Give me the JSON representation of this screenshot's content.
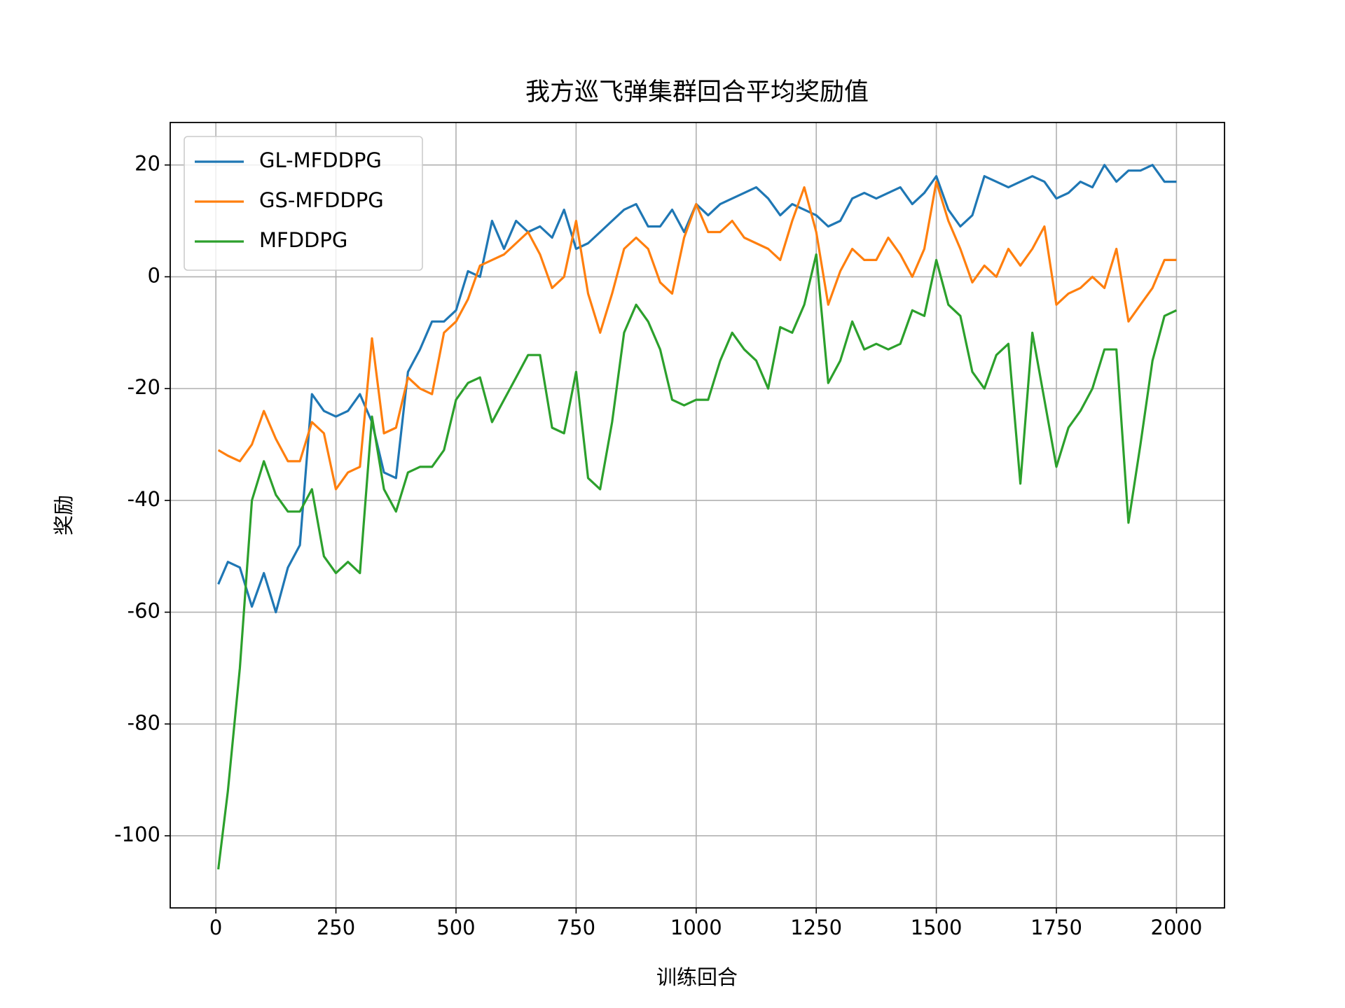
{
  "chart_data": {
    "type": "line",
    "title": "我方巡飞弹集群回合平均奖励值",
    "x_label": "训练回合",
    "y_label": "奖励",
    "x": [
      5,
      25,
      50,
      75,
      100,
      125,
      150,
      175,
      200,
      225,
      250,
      275,
      300,
      325,
      350,
      375,
      400,
      425,
      450,
      475,
      500,
      525,
      550,
      575,
      600,
      625,
      650,
      675,
      700,
      725,
      750,
      775,
      800,
      825,
      850,
      875,
      900,
      925,
      950,
      975,
      1000,
      1025,
      1050,
      1075,
      1100,
      1125,
      1150,
      1175,
      1200,
      1225,
      1250,
      1275,
      1300,
      1325,
      1350,
      1375,
      1400,
      1425,
      1450,
      1475,
      1500,
      1525,
      1550,
      1575,
      1600,
      1625,
      1650,
      1675,
      1700,
      1725,
      1750,
      1775,
      1800,
      1825,
      1850,
      1875,
      1900,
      1925,
      1950,
      1975,
      2000
    ],
    "series": [
      {
        "name": "GL-MFDDPG",
        "color": "#1f77b4",
        "values": [
          -55,
          -51,
          -52,
          -59,
          -53,
          -60,
          -52,
          -48,
          -21,
          -24,
          -25,
          -24,
          -21,
          -26,
          -35,
          -36,
          -17,
          -13,
          -8,
          -8,
          -6,
          1,
          0,
          10,
          5,
          10,
          8,
          9,
          7,
          12,
          5,
          6,
          8,
          10,
          12,
          13,
          9,
          9,
          12,
          8,
          13,
          11,
          13,
          14,
          15,
          16,
          14,
          11,
          13,
          12,
          11,
          9,
          10,
          14,
          15,
          14,
          15,
          16,
          13,
          15,
          18,
          12,
          9,
          11,
          18,
          17,
          16,
          17,
          18,
          17,
          14,
          15,
          17,
          16,
          20,
          17,
          19,
          19,
          20,
          17,
          17
        ]
      },
      {
        "name": "GS-MFDDPG",
        "color": "#ff7f0e",
        "values": [
          -31,
          -32,
          -33,
          -30,
          -24,
          -29,
          -33,
          -33,
          -26,
          -28,
          -38,
          -35,
          -34,
          -11,
          -28,
          -27,
          -18,
          -20,
          -21,
          -10,
          -8,
          -4,
          2,
          3,
          4,
          6,
          8,
          4,
          -2,
          0,
          10,
          -3,
          -10,
          -3,
          5,
          7,
          5,
          -1,
          -3,
          7,
          13,
          8,
          8,
          10,
          7,
          6,
          5,
          3,
          10,
          16,
          8,
          -5,
          1,
          5,
          3,
          3,
          7,
          4,
          0,
          5,
          17,
          10,
          5,
          -1,
          2,
          0,
          5,
          2,
          5,
          9,
          -5,
          -3,
          -2,
          0,
          -2,
          5,
          -8,
          -5,
          -2,
          3,
          3
        ]
      },
      {
        "name": "MFDDPG",
        "color": "#2ca02c",
        "values": [
          -106,
          -92,
          -70,
          -40,
          -33,
          -39,
          -42,
          -42,
          -38,
          -50,
          -53,
          -51,
          -53,
          -25,
          -38,
          -42,
          -35,
          -34,
          -34,
          -31,
          -22,
          -19,
          -18,
          -26,
          -22,
          -18,
          -14,
          -14,
          -27,
          -28,
          -17,
          -36,
          -38,
          -26,
          -10,
          -5,
          -8,
          -13,
          -22,
          -23,
          -22,
          -22,
          -15,
          -10,
          -13,
          -15,
          -20,
          -9,
          -10,
          -5,
          4,
          -19,
          -15,
          -8,
          -13,
          -12,
          -13,
          -12,
          -6,
          -7,
          3,
          -5,
          -7,
          -17,
          -20,
          -14,
          -12,
          -37,
          -10,
          -22,
          -34,
          -27,
          -24,
          -20,
          -13,
          -13,
          -44,
          -30,
          -15,
          -7,
          -6
        ]
      }
    ],
    "xlim": [
      -95,
      2100
    ],
    "ylim": [
      -112.9,
      27.6
    ],
    "xticks": [
      0,
      250,
      500,
      750,
      1000,
      1250,
      1500,
      1750,
      2000
    ],
    "yticks": [
      -100,
      -80,
      -60,
      -40,
      -20,
      0,
      20
    ],
    "grid": true,
    "legend": "upper-left"
  }
}
